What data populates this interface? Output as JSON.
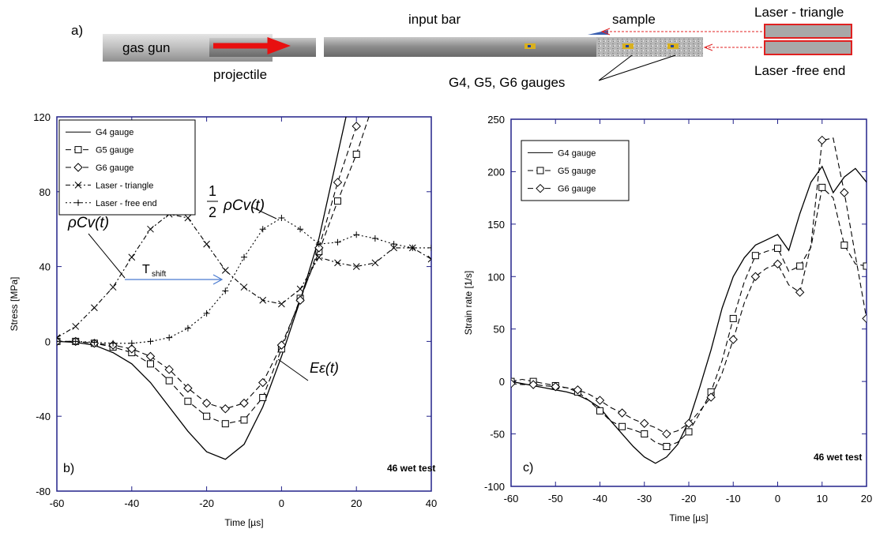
{
  "diagram": {
    "panel_label": "a)",
    "gas_gun": "gas gun",
    "projectile": "projectile",
    "input_bar": "input bar",
    "sample": "sample",
    "laser_triangle": "Laser - triangle",
    "laser_free_end": "Laser -free end",
    "gauges": "G4, G5, G6 gauges"
  },
  "chart_data": [
    {
      "type": "line",
      "xlabel": "Time [µs]",
      "ylabel": "Stress [MPa]",
      "x": [
        -60,
        -55,
        -50,
        -45,
        -40,
        -35,
        -30,
        -25,
        -20,
        -15,
        -10,
        -5,
        0,
        5,
        10,
        15,
        20,
        25,
        30,
        35,
        40
      ],
      "xlim": [
        -60,
        40
      ],
      "xticks": [
        -60,
        -40,
        -20,
        0,
        20,
        40
      ],
      "ylim": [
        -80,
        120
      ],
      "yticks": [
        -80,
        -40,
        0,
        40,
        80,
        120
      ],
      "legend": "upper left",
      "series": [
        {
          "name": "G4 gauge",
          "color": "#000000",
          "style": "solid",
          "marker": "none",
          "values": [
            0,
            -0.5,
            -2,
            -6,
            -12,
            -22,
            -35,
            -48,
            -59,
            -63,
            -55,
            -35,
            -8,
            22,
            55,
            100,
            145,
            null,
            null,
            null,
            null
          ]
        },
        {
          "name": "G5 gauge",
          "color": "#000000",
          "style": "dashed",
          "marker": "square",
          "values": [
            0,
            0,
            -1,
            -3,
            -6,
            -12,
            -21,
            -32,
            -40,
            -44,
            -42,
            -30,
            -4,
            23,
            48,
            75,
            100,
            130,
            null,
            null,
            null
          ]
        },
        {
          "name": "G6 gauge",
          "color": "#000000",
          "style": "dashed",
          "marker": "diamond",
          "values": [
            0,
            0,
            -1,
            -2,
            -4,
            -8,
            -15,
            -25,
            -33,
            -36,
            -33,
            -22,
            -2,
            22,
            50,
            85,
            115,
            null,
            null,
            null,
            null
          ]
        },
        {
          "name": "Laser - triangle",
          "color": "#000000",
          "style": "dashdot",
          "marker": "x",
          "values": [
            2,
            8,
            18,
            29,
            45,
            60,
            68,
            66,
            52,
            38,
            29,
            22,
            20,
            28,
            45,
            42,
            40,
            42,
            50,
            50,
            44
          ]
        },
        {
          "name": "Laser - free end",
          "color": "#000000",
          "style": "dotted",
          "marker": "plus",
          "values": [
            0,
            0,
            -0.5,
            -1,
            -1,
            0,
            2,
            7,
            15,
            27,
            45,
            60,
            66,
            60,
            52,
            53,
            57,
            55,
            52,
            50,
            50
          ]
        }
      ],
      "annotations": [
        "1",
        "2",
        "ρCv(t)",
        "ρCv(t)",
        "T",
        "shift",
        "Eε(t)",
        "b)",
        "46 wet test"
      ]
    },
    {
      "type": "line",
      "xlabel": "Time [µs]",
      "ylabel": "Strain rate [1/s]",
      "x": [
        -60,
        -57.5,
        -55,
        -52.5,
        -50,
        -47.5,
        -45,
        -42.5,
        -40,
        -37.5,
        -35,
        -32.5,
        -30,
        -27.5,
        -25,
        -22.5,
        -20,
        -17.5,
        -15,
        -12.5,
        -10,
        -7.5,
        -5,
        -2.5,
        0,
        2.5,
        5,
        7.5,
        10,
        12.5,
        15,
        17.5,
        20
      ],
      "xlim": [
        -60,
        20
      ],
      "xticks": [
        -60,
        -50,
        -40,
        -30,
        -20,
        -10,
        0,
        10,
        20
      ],
      "ylim": [
        -100,
        250
      ],
      "yticks": [
        -100,
        -50,
        0,
        50,
        100,
        150,
        200,
        250
      ],
      "legend": "upper left",
      "series": [
        {
          "name": "G4 gauge",
          "color": "#000000",
          "style": "solid",
          "marker": "none",
          "values": [
            0,
            -2,
            -4,
            -6,
            -8,
            -10,
            -13,
            -18,
            -25,
            -38,
            -50,
            -62,
            -72,
            -78,
            -72,
            -60,
            -38,
            -5,
            30,
            70,
            100,
            118,
            130,
            135,
            140,
            125,
            160,
            190,
            205,
            180,
            195,
            203,
            190
          ]
        },
        {
          "name": "G5 gauge",
          "color": "#000000",
          "style": "dashed",
          "marker": "square",
          "values": [
            0,
            2,
            0,
            -2,
            -4,
            -6,
            -10,
            -18,
            -28,
            -38,
            -43,
            -46,
            -50,
            -58,
            -62,
            -58,
            -48,
            -30,
            -10,
            20,
            60,
            95,
            120,
            124,
            127,
            105,
            110,
            128,
            185,
            175,
            130,
            112,
            110
          ]
        },
        {
          "name": "G6 gauge",
          "color": "#000000",
          "style": "dashed",
          "marker": "diamond",
          "values": [
            -2,
            -3,
            -3,
            -4,
            -5,
            -6,
            -8,
            -12,
            -18,
            -25,
            -30,
            -36,
            -40,
            -44,
            -50,
            -47,
            -40,
            -28,
            -15,
            8,
            40,
            75,
            100,
            108,
            112,
            92,
            85,
            130,
            230,
            232,
            180,
            120,
            60
          ]
        }
      ],
      "annotations": [
        "c)",
        "46 wet test"
      ]
    }
  ]
}
